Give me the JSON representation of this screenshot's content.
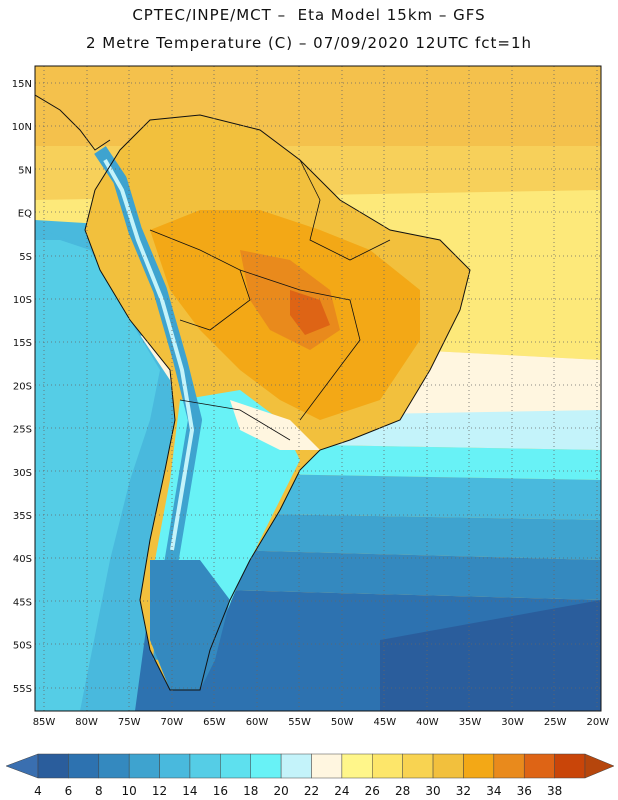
{
  "title": {
    "line1": "CPTEC/INPE/MCT –  Eta Model 15km – GFS",
    "line2": "2 Metre Temperature (C) – 07/09/2020 12UTC fct=1h"
  },
  "map": {
    "lat_labels": [
      "15N",
      "10N",
      "5N",
      "EQ",
      "5S",
      "10S",
      "15S",
      "20S",
      "25S",
      "30S",
      "35S",
      "40S",
      "45S",
      "50S",
      "55S"
    ],
    "lon_labels": [
      "85W",
      "80W",
      "75W",
      "70W",
      "65W",
      "60W",
      "55W",
      "50W",
      "45W",
      "40W",
      "35W",
      "30W",
      "25W",
      "20W"
    ]
  },
  "colorbar": {
    "labels": [
      "4",
      "6",
      "8",
      "10",
      "12",
      "14",
      "16",
      "18",
      "20",
      "22",
      "24",
      "26",
      "28",
      "30",
      "32",
      "34",
      "36",
      "38"
    ],
    "colors": [
      "#2a5d9c",
      "#2d72b0",
      "#3489bf",
      "#3ea3cf",
      "#49b9dd",
      "#55cde6",
      "#5ee0ee",
      "#68f2f6",
      "#c4f3fa",
      "#fff6e0",
      "#fff68a",
      "#fde66a",
      "#f8d351",
      "#f2c03d",
      "#f3a816",
      "#e98a1c",
      "#de6415",
      "#c94509"
    ],
    "left_color": "#3a6fb0",
    "right_color": "#b6460c"
  }
}
